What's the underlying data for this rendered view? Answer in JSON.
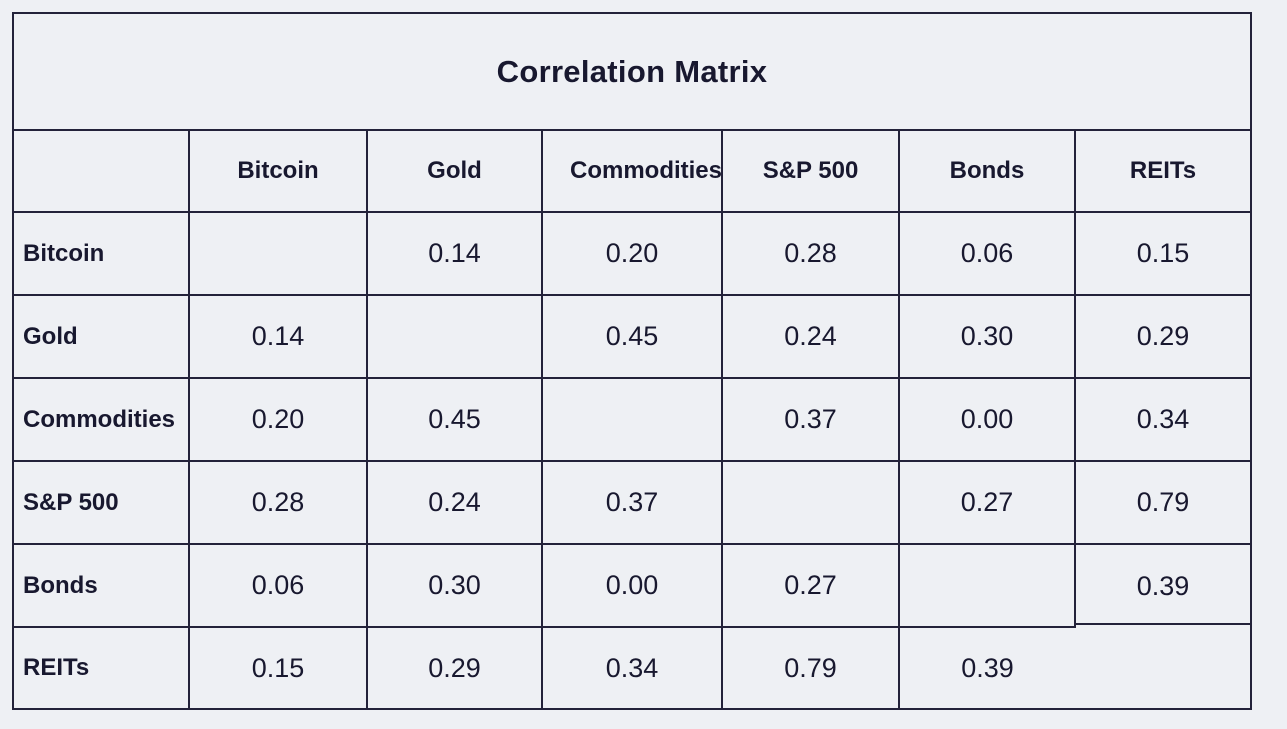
{
  "title": "Correlation Matrix",
  "colors": {
    "background": "#eef0f4",
    "border": "#23223a",
    "text": "#18182f"
  },
  "matrix": {
    "column_headers": [
      "",
      "Bitcoin",
      "Gold",
      "Commodities",
      "S&P 500",
      "Bonds",
      "REITs"
    ],
    "rows": [
      {
        "label": "Bitcoin",
        "values": [
          "",
          "0.14",
          "0.20",
          "0.28",
          "0.06",
          "0.15"
        ]
      },
      {
        "label": "Gold",
        "values": [
          "0.14",
          "",
          "0.45",
          "0.24",
          "0.30",
          "0.29"
        ]
      },
      {
        "label": "Commodities",
        "values": [
          "0.20",
          "0.45",
          "",
          "0.37",
          "0.00",
          "0.34"
        ]
      },
      {
        "label": "S&P 500",
        "values": [
          "0.28",
          "0.24",
          "0.37",
          "",
          "0.27",
          "0.79"
        ]
      },
      {
        "label": "Bonds",
        "values": [
          "0.06",
          "0.30",
          "0.00",
          "0.27",
          "",
          "0.39"
        ]
      },
      {
        "label": "REITs",
        "values": [
          "0.15",
          "0.29",
          "0.34",
          "0.79",
          "0.39",
          ""
        ]
      }
    ]
  },
  "chart_data": {
    "type": "table",
    "title": "Correlation Matrix",
    "categories": [
      "Bitcoin",
      "Gold",
      "Commodities",
      "S&P 500",
      "Bonds",
      "REITs"
    ],
    "matrix": [
      [
        null,
        0.14,
        0.2,
        0.28,
        0.06,
        0.15
      ],
      [
        0.14,
        null,
        0.45,
        0.24,
        0.3,
        0.29
      ],
      [
        0.2,
        0.45,
        null,
        0.37,
        0.0,
        0.34
      ],
      [
        0.28,
        0.24,
        0.37,
        null,
        0.27,
        0.79
      ],
      [
        0.06,
        0.3,
        0.0,
        0.27,
        null,
        0.39
      ],
      [
        0.15,
        0.29,
        0.34,
        0.79,
        0.39,
        null
      ]
    ],
    "diagonal": "blank",
    "layout_hints": {
      "grid": true,
      "bonds_reits_cells_merged_in_last_row": true,
      "commodities_header_overflows_cell": true
    }
  }
}
